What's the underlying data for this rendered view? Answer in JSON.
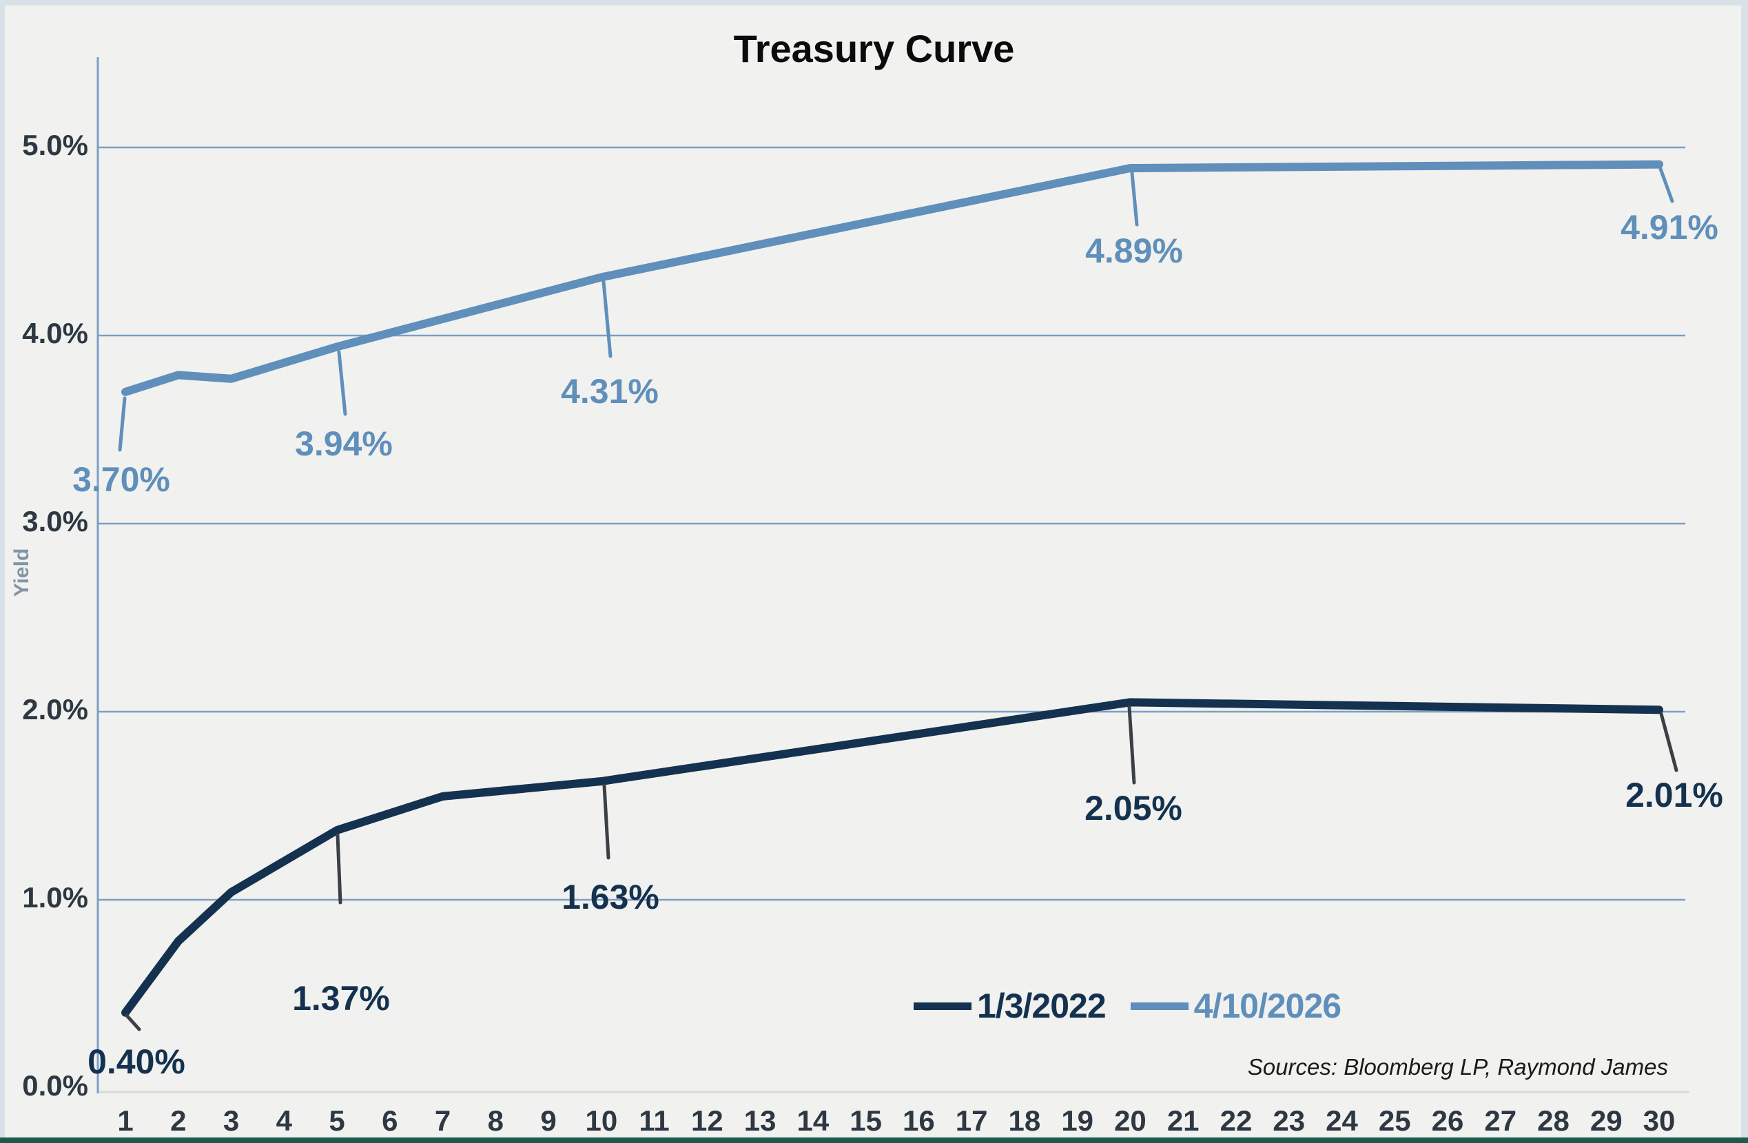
{
  "title": "Treasury Curve",
  "ylabel": "Yield",
  "source_note": "Sources: Bloomberg LP, Raymond James",
  "legend": {
    "items": [
      {
        "label": "1/3/2022",
        "color": "#14324f"
      },
      {
        "label": "4/10/2026",
        "color": "#5f8fba"
      }
    ]
  },
  "colors": {
    "background": "#f1f1ef",
    "frame_light": "#d9e1e8",
    "frame_bottom": "#1d5a4a",
    "grid": "#7ba0c4",
    "baseline": "#d8dcd8",
    "tick_text": "#2d3842",
    "title_text": "#0b0b0b",
    "ylabel_text": "#8195a6",
    "dark_leader": "#3a4046"
  },
  "chart_data": {
    "type": "line",
    "title": "Treasury Curve",
    "xlabel": "",
    "ylabel": "Yield",
    "grid": true,
    "legend_position": "bottom-right",
    "ylim": [
      0,
      5.48
    ],
    "x_ticks": [
      1,
      2,
      3,
      4,
      5,
      6,
      7,
      8,
      9,
      10,
      11,
      12,
      13,
      14,
      15,
      16,
      17,
      18,
      19,
      20,
      21,
      22,
      23,
      24,
      25,
      26,
      27,
      28,
      29,
      30
    ],
    "y_ticks": [
      {
        "value": 5,
        "label": "5.0%"
      },
      {
        "value": 4,
        "label": "4.0%"
      },
      {
        "value": 3,
        "label": "3.0%"
      },
      {
        "value": 2,
        "label": "2.0%"
      },
      {
        "value": 1,
        "label": "1.0%"
      },
      {
        "value": 0,
        "label": "0.0%"
      }
    ],
    "series": [
      {
        "name": "1/3/2022",
        "color": "#14324f",
        "x": [
          1,
          2,
          3,
          5,
          7,
          10,
          20,
          30
        ],
        "values": [
          0.4,
          0.78,
          1.04,
          1.37,
          1.55,
          1.63,
          2.05,
          2.01
        ],
        "annotations": [
          {
            "x": 1,
            "value": 0.4,
            "label": "0.40%"
          },
          {
            "x": 5,
            "value": 1.37,
            "label": "1.37%"
          },
          {
            "x": 10,
            "value": 1.63,
            "label": "1.63%"
          },
          {
            "x": 20,
            "value": 2.05,
            "label": "2.05%"
          },
          {
            "x": 30,
            "value": 2.01,
            "label": "2.01%"
          }
        ]
      },
      {
        "name": "4/10/2026",
        "color": "#5f8fba",
        "x": [
          1,
          2,
          3,
          5,
          10,
          20,
          30
        ],
        "values": [
          3.7,
          3.79,
          3.77,
          3.94,
          4.31,
          4.89,
          4.91
        ],
        "annotations": [
          {
            "x": 1,
            "value": 3.7,
            "label": "3.70%"
          },
          {
            "x": 5,
            "value": 3.94,
            "label": "3.94%"
          },
          {
            "x": 10,
            "value": 4.31,
            "label": "4.31%"
          },
          {
            "x": 20,
            "value": 4.89,
            "label": "4.89%"
          },
          {
            "x": 30,
            "value": 4.91,
            "label": "4.91%"
          }
        ]
      }
    ]
  }
}
